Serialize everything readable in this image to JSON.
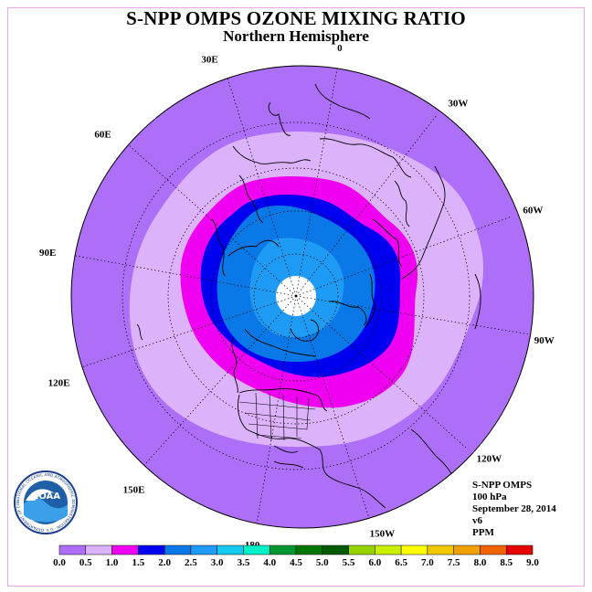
{
  "header": {
    "title": "S-NPP OMPS OZONE MIXING RATIO",
    "subtitle": "Northern Hemisphere"
  },
  "map": {
    "longitude_labels": [
      {
        "text": "90E",
        "deg": 90
      },
      {
        "text": "60E",
        "deg": 60
      },
      {
        "text": "30E",
        "deg": 30
      },
      {
        "text": "0",
        "deg": 0
      },
      {
        "text": "30W",
        "deg": -30
      },
      {
        "text": "60W",
        "deg": -60
      },
      {
        "text": "90W",
        "deg": -90
      },
      {
        "text": "120W",
        "deg": -120
      },
      {
        "text": "150W",
        "deg": -150
      },
      {
        "text": "180",
        "deg": 180
      },
      {
        "text": "150E",
        "deg": 150
      },
      {
        "text": "120E",
        "deg": 120
      }
    ],
    "contour_colors": {
      "0.5-1.0": "#ad6ff7",
      "1.0-1.5": "#dcb2fa",
      "1.5-2.0": "#f000f0",
      "2.0-2.5": "#0000f0",
      "2.5-3.0": "#0a78e6",
      "3.0-3.5": "#1e9bf5",
      "polar_night": "#ffffff"
    }
  },
  "info": {
    "instrument": "S-NPP OMPS",
    "level": "100 hPa",
    "date": "September 28, 2014",
    "version": "v6",
    "units": "PPM"
  },
  "logo": {
    "text": "NOAA",
    "ring_text": "NATIONAL OCEANIC AND ATMOSPHERIC ADMINISTRATION · U.S. DEPARTMENT OF COMMERCE"
  },
  "colorbar": {
    "ticks": [
      "0.0",
      "0.5",
      "1.0",
      "1.5",
      "2.0",
      "2.5",
      "3.0",
      "3.5",
      "4.0",
      "4.5",
      "5.0",
      "5.5",
      "6.0",
      "6.5",
      "7.0",
      "7.5",
      "8.0",
      "8.5",
      "9.0"
    ],
    "colors": [
      "#ad6ff7",
      "#dcb2fa",
      "#f000f0",
      "#0000f0",
      "#0a78e6",
      "#1e9bf5",
      "#14c8f0",
      "#00f0c8",
      "#009632",
      "#007800",
      "#005a00",
      "#96d200",
      "#c8f000",
      "#ffff00",
      "#f0c800",
      "#f0a000",
      "#f06400",
      "#e60000",
      "#8c5a32"
    ]
  }
}
